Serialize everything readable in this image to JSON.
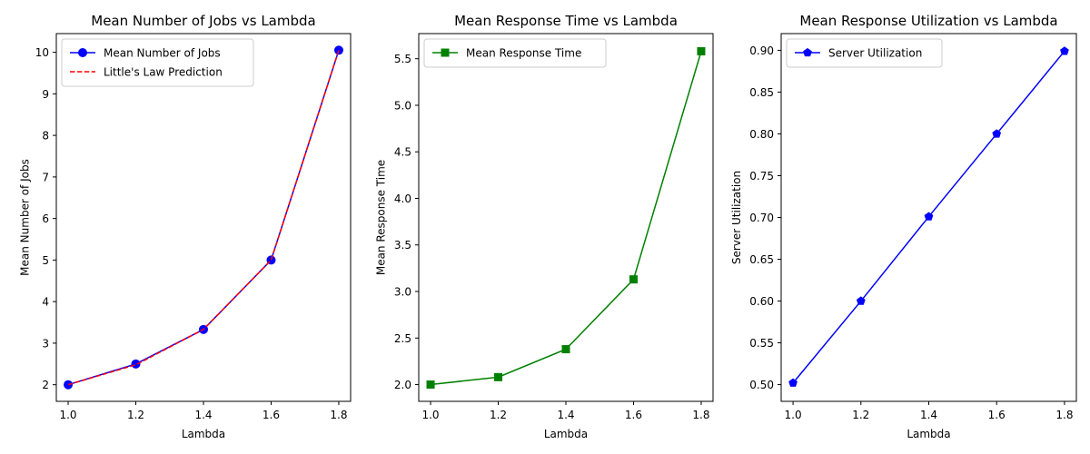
{
  "chart_data": [
    {
      "type": "line",
      "title": "Mean Number of Jobs vs Lambda",
      "xlabel": "Lambda",
      "ylabel": "Mean Number of Jobs",
      "xlim": [
        0.965,
        1.835
      ],
      "ylim": [
        1.6,
        10.45
      ],
      "xticks": [
        1.0,
        1.2,
        1.4,
        1.6,
        1.8
      ],
      "xtick_labels": [
        "1.0",
        "1.2",
        "1.4",
        "1.6",
        "1.8"
      ],
      "yticks": [
        2,
        3,
        4,
        5,
        6,
        7,
        8,
        9,
        10
      ],
      "ytick_labels": [
        "2",
        "3",
        "4",
        "5",
        "6",
        "7",
        "8",
        "9",
        "10"
      ],
      "grid": false,
      "legend_position": "top-left",
      "x": [
        1.0,
        1.2,
        1.4,
        1.6,
        1.8
      ],
      "series": [
        {
          "name": "Mean Number of Jobs",
          "values": [
            2.0,
            2.5,
            3.33,
            5.0,
            10.05
          ],
          "color": "#0000ff",
          "line_style": "solid",
          "marker": "circle"
        },
        {
          "name": "Little's Law Prediction",
          "values": [
            2.0,
            2.48,
            3.33,
            5.0,
            10.05
          ],
          "color": "#ff0000",
          "line_style": "dashed",
          "marker": "none"
        }
      ]
    },
    {
      "type": "line",
      "title": "Mean Response Time vs Lambda",
      "xlabel": "Lambda",
      "ylabel": "Mean Response Time",
      "xlim": [
        0.965,
        1.835
      ],
      "ylim": [
        1.82,
        5.77
      ],
      "xticks": [
        1.0,
        1.2,
        1.4,
        1.6,
        1.8
      ],
      "xtick_labels": [
        "1.0",
        "1.2",
        "1.4",
        "1.6",
        "1.8"
      ],
      "yticks": [
        2.0,
        2.5,
        3.0,
        3.5,
        4.0,
        4.5,
        5.0,
        5.5
      ],
      "ytick_labels": [
        "2.0",
        "2.5",
        "3.0",
        "3.5",
        "4.0",
        "4.5",
        "5.0",
        "5.5"
      ],
      "grid": false,
      "legend_position": "top-left",
      "x": [
        1.0,
        1.2,
        1.4,
        1.6,
        1.8
      ],
      "series": [
        {
          "name": "Mean Response Time",
          "values": [
            2.0,
            2.08,
            2.38,
            3.13,
            5.58
          ],
          "color": "#008000",
          "line_style": "solid",
          "marker": "square"
        }
      ]
    },
    {
      "type": "line",
      "title": "Mean Response Utilization vs Lambda",
      "xlabel": "Lambda",
      "ylabel": "Server Utilization",
      "xlim": [
        0.965,
        1.835
      ],
      "ylim": [
        0.48,
        0.92
      ],
      "xticks": [
        1.0,
        1.2,
        1.4,
        1.6,
        1.8
      ],
      "xtick_labels": [
        "1.0",
        "1.2",
        "1.4",
        "1.6",
        "1.8"
      ],
      "yticks": [
        0.5,
        0.55,
        0.6,
        0.65,
        0.7,
        0.75,
        0.8,
        0.85,
        0.9
      ],
      "ytick_labels": [
        "0.50",
        "0.55",
        "0.60",
        "0.65",
        "0.70",
        "0.75",
        "0.80",
        "0.85",
        "0.90"
      ],
      "grid": false,
      "legend_position": "top-left",
      "x": [
        1.0,
        1.2,
        1.4,
        1.6,
        1.8
      ],
      "series": [
        {
          "name": "Server Utilization",
          "values": [
            0.502,
            0.6,
            0.701,
            0.8,
            0.899
          ],
          "color": "#0000ff",
          "line_style": "solid",
          "marker": "pentagon"
        }
      ]
    }
  ]
}
